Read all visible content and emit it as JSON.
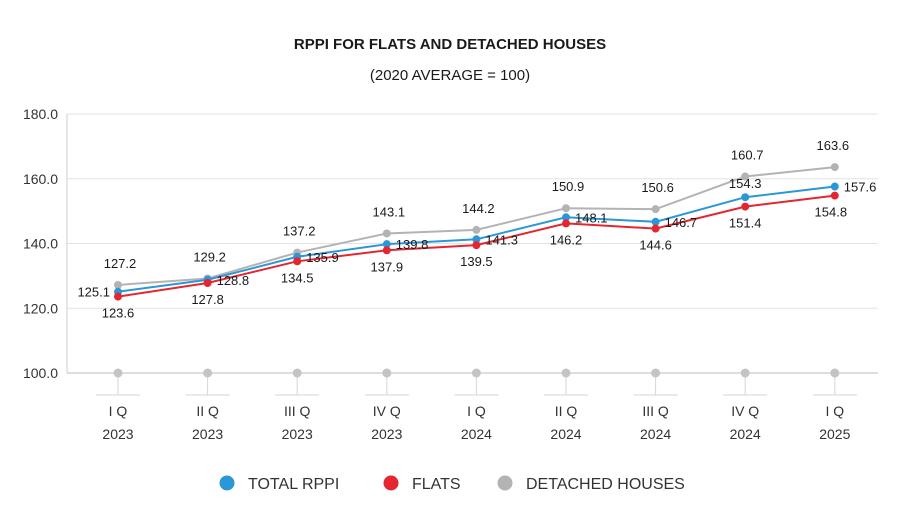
{
  "chart_data": {
    "type": "line",
    "title": "RPPI FOR FLATS AND DETACHED HOUSES",
    "subtitle": "(2020 AVERAGE = 100)",
    "categories": [
      [
        "I Q",
        "2023"
      ],
      [
        "II Q",
        "2023"
      ],
      [
        "III Q",
        "2023"
      ],
      [
        "IV Q",
        "2023"
      ],
      [
        "I Q",
        "2024"
      ],
      [
        "II Q",
        "2024"
      ],
      [
        "III Q",
        "2024"
      ],
      [
        "IV Q",
        "2024"
      ],
      [
        "I Q",
        "2025"
      ]
    ],
    "ylim": [
      100,
      180
    ],
    "yticks": [
      "100.0",
      "120.0",
      "140.0",
      "160.0",
      "180.0"
    ],
    "grid": true,
    "legend_position": "bottom",
    "series": [
      {
        "name": "DETACHED HOUSES",
        "color": "#b3b3b3",
        "values": [
          127.2,
          129.2,
          137.2,
          143.1,
          144.2,
          150.9,
          150.6,
          160.7,
          163.6
        ],
        "labels": [
          "127.2",
          "129.2",
          "137.2",
          "143.1",
          "144.2",
          "150.9",
          "150.6",
          "160.7",
          "163.6"
        ]
      },
      {
        "name": "TOTAL RPPI",
        "color": "#2b97d6",
        "values": [
          125.1,
          128.8,
          135.9,
          139.8,
          141.3,
          148.1,
          146.7,
          154.3,
          157.6
        ],
        "labels": [
          "125.1",
          "128.8",
          "135.9",
          "139.8",
          "141.3",
          "148.1",
          "146.7",
          "154.3",
          "157.6"
        ]
      },
      {
        "name": "FLATS",
        "color": "#e3262f",
        "values": [
          123.6,
          127.8,
          134.5,
          137.9,
          139.5,
          146.2,
          144.6,
          151.4,
          154.8
        ],
        "labels": [
          "123.6",
          "127.8",
          "134.5",
          "137.9",
          "139.5",
          "146.2",
          "144.6",
          "151.4",
          "154.8"
        ]
      }
    ],
    "legend_order": [
      "TOTAL RPPI",
      "FLATS",
      "DETACHED HOUSES"
    ]
  }
}
